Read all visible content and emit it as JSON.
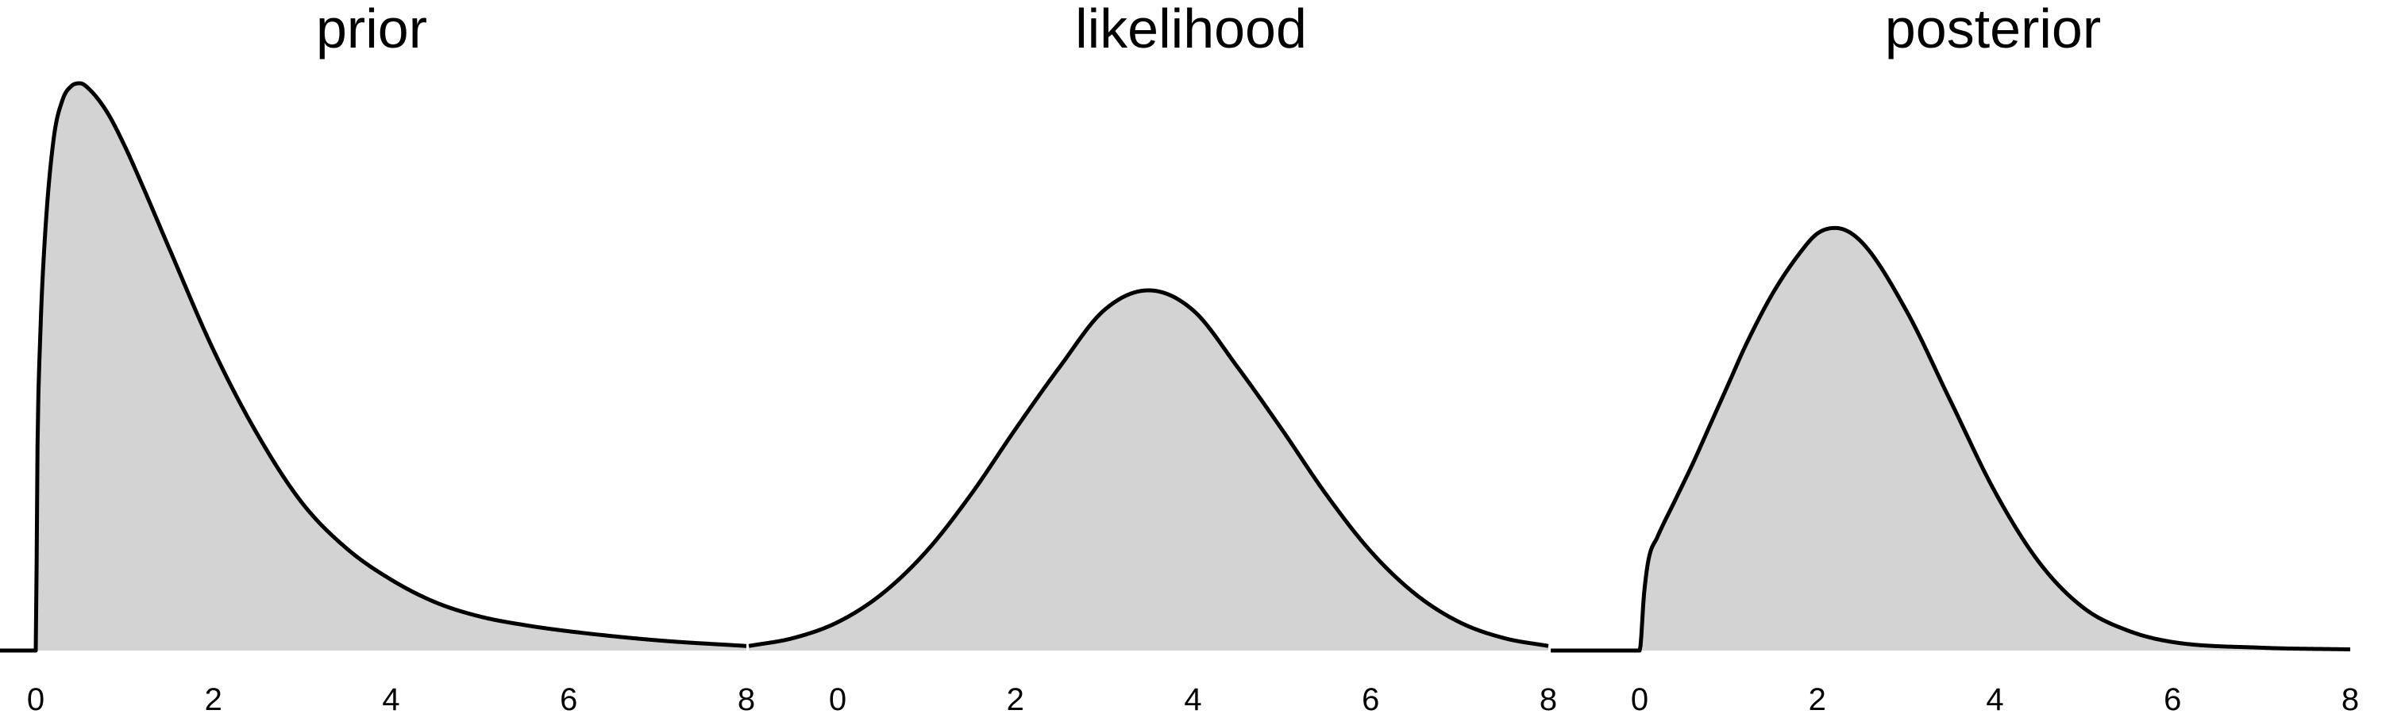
{
  "chart_data": [
    {
      "type": "area",
      "title": "prior",
      "xlabel": "",
      "ylabel": "",
      "xlim": [
        -1,
        8
      ],
      "ylim": [
        0,
        1
      ],
      "xticks": [
        0,
        2,
        4,
        6,
        8
      ],
      "grid": false,
      "x": [
        -1,
        0,
        0.02,
        0.05,
        0.1,
        0.2,
        0.3,
        0.4,
        0.5,
        0.6,
        0.8,
        1.0,
        1.2,
        1.5,
        2.0,
        2.5,
        3.0,
        3.5,
        4.0,
        4.5,
        5.0,
        5.5,
        6.0,
        7.0,
        8.0
      ],
      "values": [
        0,
        0,
        0.36,
        0.55,
        0.72,
        0.9,
        0.97,
        0.995,
        1.0,
        0.99,
        0.95,
        0.89,
        0.82,
        0.71,
        0.53,
        0.38,
        0.26,
        0.18,
        0.125,
        0.085,
        0.06,
        0.045,
        0.034,
        0.018,
        0.008
      ]
    },
    {
      "type": "area",
      "title": "likelihood",
      "xlabel": "",
      "ylabel": "",
      "xlim": [
        -1,
        8
      ],
      "ylim": [
        0,
        1
      ],
      "xticks": [
        0,
        2,
        4,
        6,
        8
      ],
      "grid": false,
      "x": [
        -1,
        -0.5,
        0,
        0.5,
        1.0,
        1.5,
        2.0,
        2.5,
        3.0,
        3.5,
        4.0,
        4.5,
        5.0,
        5.5,
        6.0,
        6.5,
        7.0,
        7.5,
        8.0
      ],
      "values": [
        0.008,
        0.022,
        0.05,
        0.1,
        0.175,
        0.275,
        0.39,
        0.5,
        0.6,
        0.635,
        0.6,
        0.5,
        0.39,
        0.275,
        0.175,
        0.1,
        0.05,
        0.022,
        0.008
      ]
    },
    {
      "type": "area",
      "title": "posterior",
      "xlabel": "",
      "ylabel": "",
      "xlim": [
        -1,
        8
      ],
      "ylim": [
        0,
        1
      ],
      "xticks": [
        0,
        2,
        4,
        6,
        8
      ],
      "grid": false,
      "x": [
        -1,
        0,
        0.05,
        0.1,
        0.2,
        0.4,
        0.6,
        0.8,
        1.0,
        1.2,
        1.5,
        1.8,
        2.0,
        2.2,
        2.5,
        3.0,
        3.5,
        4.0,
        4.5,
        5.0,
        5.5,
        6.0,
        7.0,
        8.0
      ],
      "values": [
        0,
        0,
        0.1,
        0.16,
        0.2,
        0.265,
        0.33,
        0.4,
        0.47,
        0.54,
        0.63,
        0.7,
        0.735,
        0.745,
        0.72,
        0.6,
        0.44,
        0.28,
        0.155,
        0.075,
        0.035,
        0.015,
        0.005,
        0.002
      ]
    }
  ]
}
